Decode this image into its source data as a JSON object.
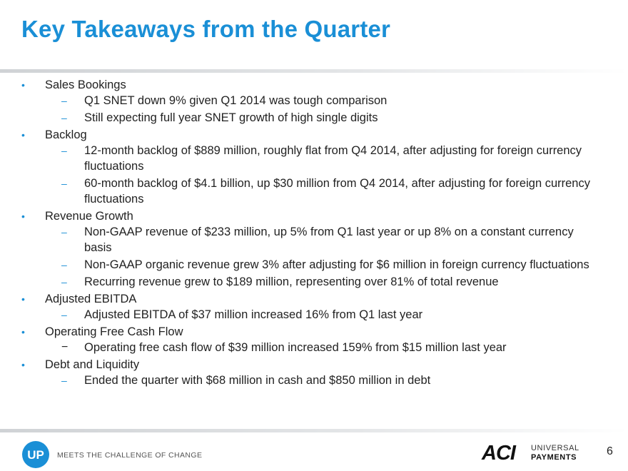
{
  "title": "Key Takeaways from the Quarter",
  "bullets": [
    {
      "label": "Sales Bookings",
      "subs": [
        "Q1 SNET down 9% given Q1 2014 was tough comparison",
        "Still expecting full year SNET growth of high single digits"
      ]
    },
    {
      "label": "Backlog",
      "subs": [
        "12-month backlog of $889 million, roughly flat from Q4 2014, after adjusting for foreign currency fluctuations",
        "60-month backlog of $4.1 billion, up $30 million from Q4 2014, after adjusting for foreign currency fluctuations"
      ]
    },
    {
      "label": "Revenue Growth",
      "subs": [
        "Non-GAAP revenue of $233 million, up 5% from Q1 last year or up 8% on a constant currency basis",
        "Non-GAAP organic revenue grew 3% after adjusting for $6 million in foreign currency fluctuations",
        "Recurring revenue grew to $189 million, representing over 81% of total revenue"
      ]
    },
    {
      "label": "Adjusted EBITDA",
      "subs": [
        "Adjusted EBITDA of $37 million increased 16% from Q1 last year"
      ]
    },
    {
      "label": "Operating Free Cash Flow",
      "subs": [
        "Operating free cash flow of $39 million increased 159% from $15 million last year"
      ]
    },
    {
      "label": "Debt and Liquidity",
      "subs": [
        "Ended the quarter with $68 million in cash and $850 million in debt"
      ]
    }
  ],
  "markers": {
    "bullet": "•",
    "dash": "–",
    "dash_plain": "−"
  },
  "footer": {
    "tagline": "MEETS THE CHALLENGE OF CHANGE",
    "logo_up_text": "UP",
    "brand_line1": "UNIVERSAL",
    "brand_line2": "PAYMENTS",
    "logo_aci_text": "ACI",
    "page_number": "6"
  },
  "colors": {
    "accent": "#1a8fd6",
    "text": "#222222",
    "rule": "#cfd2d5"
  },
  "icons": {
    "up_logo": "up-circle-logo",
    "aci_logo": "aci-wordmark-logo"
  }
}
